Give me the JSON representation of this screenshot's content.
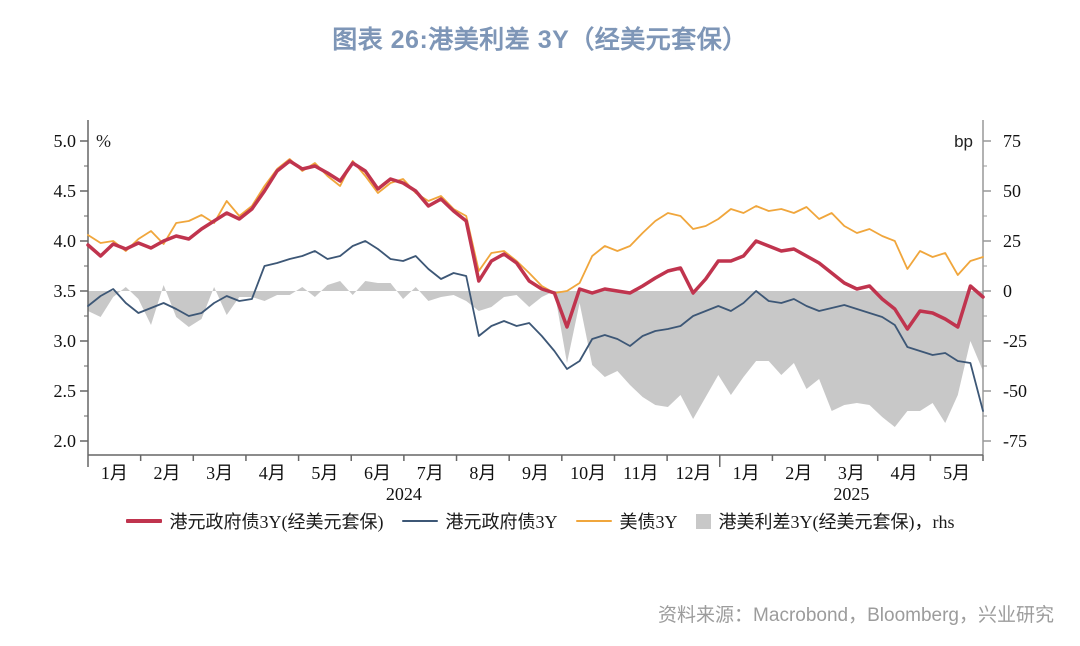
{
  "title": "图表 26:港美利差 3Y（经美元套保）",
  "source": "资料来源：Macrobond，Bloomberg，兴业研究",
  "colors": {
    "hedged_hkd_bond": "#C0344E",
    "hkd_bond": "#3D5776",
    "us_treasury": "#F0A63C",
    "spread_area": "#C8C8C8",
    "title_text": "#7E96B7",
    "source_text": "#9C9C9C"
  },
  "legend": [
    {
      "label": "港元政府债3Y(经美元套保)",
      "type": "line",
      "color": "#C0344E",
      "thickness": 4
    },
    {
      "label": "港元政府债3Y",
      "type": "line",
      "color": "#3D5776",
      "thickness": 2
    },
    {
      "label": "美债3Y",
      "type": "line",
      "color": "#F0A63C",
      "thickness": 2
    },
    {
      "label": "港美利差3Y(经美元套保)，rhs",
      "type": "area",
      "color": "#C8C8C8"
    }
  ],
  "chart_data": {
    "type": "line",
    "title": "图表 26:港美利差 3Y（经美元套保）",
    "left_axis": {
      "unit": "%",
      "ticks": [
        5.0,
        4.5,
        4.0,
        3.5,
        3.0,
        2.5,
        2.0
      ],
      "range": [
        2.0,
        5.0
      ]
    },
    "right_axis": {
      "unit": "bp",
      "ticks": [
        75,
        50,
        25,
        0,
        -25,
        -50,
        -75
      ],
      "range": [
        -75,
        75
      ]
    },
    "x_axis": {
      "month_labels": [
        "1月",
        "2月",
        "3月",
        "4月",
        "5月",
        "6月",
        "7月",
        "8月",
        "9月",
        "10月",
        "11月",
        "12月",
        "1月",
        "2月",
        "3月",
        "4月",
        "5月"
      ],
      "year_labels": [
        {
          "label": "2024",
          "start_month": 0,
          "end_month": 12
        },
        {
          "label": "2025",
          "start_month": 12,
          "end_month": 17
        }
      ],
      "range_note": "Jan 2024 - mid May 2025, weekly samples"
    },
    "series": [
      {
        "name": "港元政府债3Y(经美元套保)",
        "axis": "left",
        "style": "line",
        "color": "#C0344E",
        "width": 3.5,
        "values": [
          3.96,
          3.85,
          3.97,
          3.92,
          3.98,
          3.93,
          4.0,
          4.05,
          4.02,
          4.12,
          4.2,
          4.28,
          4.22,
          4.32,
          4.5,
          4.7,
          4.8,
          4.72,
          4.75,
          4.68,
          4.6,
          4.78,
          4.7,
          4.52,
          4.62,
          4.58,
          4.5,
          4.35,
          4.42,
          4.3,
          4.2,
          3.6,
          3.8,
          3.87,
          3.78,
          3.6,
          3.52,
          3.48,
          3.14,
          3.52,
          3.48,
          3.52,
          3.5,
          3.48,
          3.55,
          3.63,
          3.7,
          3.73,
          3.48,
          3.62,
          3.8,
          3.8,
          3.85,
          4.0,
          3.95,
          3.9,
          3.92,
          3.85,
          3.78,
          3.68,
          3.58,
          3.52,
          3.55,
          3.42,
          3.32,
          3.12,
          3.3,
          3.28,
          3.22,
          3.14,
          3.55,
          3.44
        ]
      },
      {
        "name": "港元政府债3Y",
        "axis": "left",
        "style": "line",
        "color": "#3D5776",
        "width": 1.8,
        "values": [
          3.35,
          3.45,
          3.52,
          3.38,
          3.28,
          3.33,
          3.38,
          3.32,
          3.25,
          3.28,
          3.38,
          3.45,
          3.4,
          3.42,
          3.75,
          3.78,
          3.82,
          3.85,
          3.9,
          3.82,
          3.85,
          3.95,
          4.0,
          3.92,
          3.82,
          3.8,
          3.85,
          3.72,
          3.62,
          3.68,
          3.65,
          3.05,
          3.15,
          3.2,
          3.15,
          3.18,
          3.05,
          2.9,
          2.72,
          2.8,
          3.02,
          3.06,
          3.02,
          2.95,
          3.05,
          3.1,
          3.12,
          3.15,
          3.25,
          3.3,
          3.35,
          3.3,
          3.38,
          3.5,
          3.4,
          3.38,
          3.42,
          3.35,
          3.3,
          3.33,
          3.36,
          3.32,
          3.28,
          3.24,
          3.16,
          2.94,
          2.9,
          2.86,
          2.88,
          2.8,
          2.78,
          2.3
        ]
      },
      {
        "name": "美债3Y",
        "axis": "left",
        "style": "line",
        "color": "#F0A63C",
        "width": 1.8,
        "values": [
          4.06,
          3.98,
          4.0,
          3.9,
          4.02,
          4.1,
          3.97,
          4.18,
          4.2,
          4.26,
          4.18,
          4.4,
          4.25,
          4.35,
          4.55,
          4.72,
          4.82,
          4.7,
          4.78,
          4.65,
          4.55,
          4.8,
          4.65,
          4.48,
          4.58,
          4.62,
          4.48,
          4.4,
          4.45,
          4.32,
          4.25,
          3.7,
          3.88,
          3.9,
          3.8,
          3.68,
          3.55,
          3.48,
          3.5,
          3.58,
          3.85,
          3.95,
          3.9,
          3.95,
          4.08,
          4.2,
          4.28,
          4.25,
          4.12,
          4.15,
          4.22,
          4.32,
          4.28,
          4.35,
          4.3,
          4.32,
          4.28,
          4.34,
          4.22,
          4.28,
          4.15,
          4.08,
          4.12,
          4.05,
          4.0,
          3.72,
          3.9,
          3.84,
          3.88,
          3.66,
          3.8,
          3.84
        ]
      },
      {
        "name": "港美利差3Y(经美元套保)，rhs",
        "axis": "right",
        "style": "area",
        "color": "#C8C8C8",
        "baseline": 0,
        "values": [
          -10,
          -13,
          -3,
          2,
          -4,
          -17,
          3,
          -13,
          -18,
          -14,
          2,
          -12,
          -3,
          -3,
          -5,
          -2,
          -2,
          2,
          -3,
          3,
          5,
          -2,
          5,
          4,
          4,
          -4,
          2,
          -5,
          -3,
          -2,
          -5,
          -10,
          -8,
          -3,
          -2,
          -8,
          -3,
          0,
          -36,
          -6,
          -37,
          -43,
          -40,
          -47,
          -53,
          -57,
          -58,
          -52,
          -64,
          -53,
          -42,
          -52,
          -43,
          -35,
          -35,
          -42,
          -36,
          -49,
          -44,
          -60,
          -57,
          -56,
          -57,
          -63,
          -68,
          -60,
          -60,
          -56,
          -66,
          -52,
          -25,
          -40
        ]
      }
    ]
  }
}
